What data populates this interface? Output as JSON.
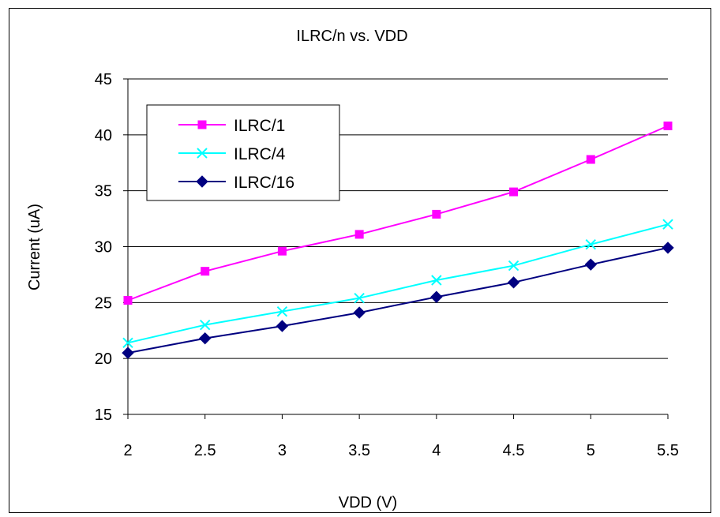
{
  "chart_data": {
    "type": "line",
    "title": "ILRC/n vs. VDD",
    "xlabel": "VDD (V)",
    "ylabel": "Current (uA)",
    "x": [
      2,
      2.5,
      3,
      3.5,
      4,
      4.5,
      5,
      5.5
    ],
    "x_tick_labels": [
      "2",
      "2.5",
      "3",
      "3.5",
      "4",
      "4.5",
      "5",
      "5.5"
    ],
    "ylim": [
      15,
      45
    ],
    "y_ticks": [
      15,
      20,
      25,
      30,
      35,
      40,
      45
    ],
    "grid": "horizontal",
    "legend_position": "top-left",
    "series": [
      {
        "name": "ILRC/1",
        "color": "#FF00FF",
        "marker": "square",
        "values": [
          25.2,
          27.8,
          29.6,
          31.1,
          32.9,
          34.9,
          37.8,
          40.8
        ]
      },
      {
        "name": "ILRC/4",
        "color": "#00FFFF",
        "marker": "x",
        "values": [
          21.4,
          23.0,
          24.2,
          25.4,
          27.0,
          28.3,
          30.2,
          32.0
        ]
      },
      {
        "name": "ILRC/16",
        "color": "#000080",
        "marker": "diamond",
        "values": [
          20.5,
          21.8,
          22.9,
          24.1,
          25.5,
          26.8,
          28.4,
          29.9
        ]
      }
    ]
  }
}
